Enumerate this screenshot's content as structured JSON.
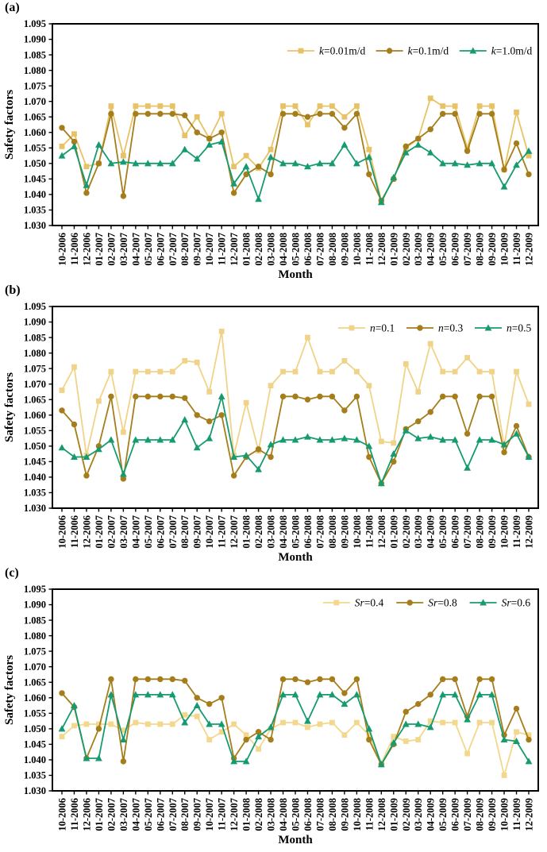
{
  "figure": {
    "background": "#ffffff",
    "axis_color": "#000000",
    "ylabel": "Safety factors",
    "xlabel": "Month",
    "ylim": [
      1.03,
      1.095
    ],
    "ytick_step": 0.005,
    "grid": false,
    "legend_position": "top-right-inside"
  },
  "months": [
    "10-2006",
    "11-2006",
    "12-2006",
    "01-2007",
    "02-2007",
    "03-2007",
    "04-2007",
    "05-2007",
    "06-2007",
    "07-2007",
    "08-2007",
    "09-2007",
    "10-2007",
    "11-2007",
    "12-2007",
    "01-2008",
    "02-2008",
    "03-2008",
    "04-2008",
    "05-2008",
    "06-2008",
    "07-2008",
    "08-2008",
    "09-2008",
    "10-2008",
    "11-2008",
    "12-2008",
    "01-2009",
    "02-2009",
    "03-2009",
    "04-2009",
    "05-2009",
    "06-2009",
    "07-2009",
    "08-2009",
    "09-2009",
    "10-2009",
    "11-2009",
    "12-2009"
  ],
  "chart_data": [
    {
      "type": "line",
      "panel": "(a)",
      "xlabel": "Month",
      "ylabel": "Safety factors",
      "ylim": [
        1.03,
        1.095
      ],
      "ytick_step": 0.005,
      "grid": false,
      "legend_position": "top-right-inside",
      "categories": [
        "10-2006",
        "11-2006",
        "12-2006",
        "01-2007",
        "02-2007",
        "03-2007",
        "04-2007",
        "05-2007",
        "06-2007",
        "07-2007",
        "08-2007",
        "09-2007",
        "10-2007",
        "11-2007",
        "12-2007",
        "01-2008",
        "02-2008",
        "03-2008",
        "04-2008",
        "05-2008",
        "06-2008",
        "07-2008",
        "08-2008",
        "09-2008",
        "10-2008",
        "11-2008",
        "12-2008",
        "01-2009",
        "02-2009",
        "03-2009",
        "04-2009",
        "05-2009",
        "06-2009",
        "07-2009",
        "08-2009",
        "09-2009",
        "10-2009",
        "11-2009",
        "12-2009"
      ],
      "series": [
        {
          "name": "k=0.01m/d",
          "name_var": "k",
          "name_rest": "=0.01m/d",
          "color": "#E8C266",
          "marker": "square",
          "values": [
            1.0555,
            1.0595,
            1.049,
            1.05,
            1.0685,
            1.0525,
            1.0685,
            1.0685,
            1.0685,
            1.0685,
            1.059,
            1.065,
            1.058,
            1.066,
            1.049,
            1.0525,
            1.0485,
            1.0545,
            1.0685,
            1.0685,
            1.0625,
            1.0685,
            1.0685,
            1.065,
            1.0685,
            1.0545,
            1.038,
            1.045,
            1.055,
            1.058,
            1.071,
            1.0685,
            1.0685,
            1.055,
            1.0685,
            1.0685,
            1.048,
            1.0665,
            1.0525
          ]
        },
        {
          "name": "k=0.1m/d",
          "name_var": "k",
          "name_rest": "=0.1m/d",
          "color": "#A57E1B",
          "marker": "circle",
          "values": [
            1.0615,
            1.057,
            1.0405,
            1.05,
            1.066,
            1.0395,
            1.066,
            1.066,
            1.066,
            1.066,
            1.0655,
            1.06,
            1.058,
            1.06,
            1.0405,
            1.0465,
            1.049,
            1.0465,
            1.066,
            1.066,
            1.065,
            1.066,
            1.066,
            1.0615,
            1.066,
            1.0465,
            1.038,
            1.045,
            1.0555,
            1.058,
            1.061,
            1.066,
            1.066,
            1.054,
            1.066,
            1.066,
            1.048,
            1.0565,
            1.0465
          ]
        },
        {
          "name": "k=1.0m/d",
          "name_var": "k",
          "name_rest": "=1.0m/d",
          "color": "#169B70",
          "marker": "triangle",
          "values": [
            1.0525,
            1.0555,
            1.043,
            1.056,
            1.05,
            1.0505,
            1.05,
            1.05,
            1.05,
            1.05,
            1.0545,
            1.0515,
            1.056,
            1.057,
            1.0435,
            1.049,
            1.0385,
            1.052,
            1.05,
            1.05,
            1.049,
            1.05,
            1.05,
            1.056,
            1.05,
            1.052,
            1.0375,
            1.0455,
            1.0535,
            1.056,
            1.0535,
            1.05,
            1.05,
            1.0495,
            1.05,
            1.05,
            1.0425,
            1.0495,
            1.054
          ]
        }
      ]
    },
    {
      "type": "line",
      "panel": "(b)",
      "xlabel": "Month",
      "ylabel": "Safety factors",
      "ylim": [
        1.03,
        1.095
      ],
      "ytick_step": 0.005,
      "grid": false,
      "legend_position": "top-right-inside",
      "categories": [
        "10-2006",
        "11-2006",
        "12-2006",
        "01-2007",
        "02-2007",
        "03-2007",
        "04-2007",
        "05-2007",
        "06-2007",
        "07-2007",
        "08-2007",
        "09-2007",
        "10-2007",
        "11-2007",
        "12-2007",
        "01-2008",
        "02-2008",
        "03-2008",
        "04-2008",
        "05-2008",
        "06-2008",
        "07-2008",
        "08-2008",
        "09-2008",
        "10-2008",
        "11-2008",
        "12-2008",
        "01-2009",
        "02-2009",
        "03-2009",
        "04-2009",
        "05-2009",
        "06-2009",
        "07-2009",
        "08-2009",
        "09-2009",
        "10-2009",
        "11-2009",
        "12-2009"
      ],
      "series": [
        {
          "name": "n=0.1",
          "name_var": "n",
          "name_rest": "=0.1",
          "color": "#F0D388",
          "marker": "square",
          "values": [
            1.068,
            1.0755,
            1.047,
            1.0645,
            1.074,
            1.0545,
            1.074,
            1.074,
            1.074,
            1.074,
            1.0775,
            1.077,
            1.0675,
            1.087,
            1.047,
            1.064,
            1.0485,
            1.0695,
            1.074,
            1.074,
            1.085,
            1.074,
            1.074,
            1.0775,
            1.074,
            1.0695,
            1.0515,
            1.051,
            1.0765,
            1.0675,
            1.083,
            1.074,
            1.074,
            1.0785,
            1.074,
            1.074,
            1.05,
            1.074,
            1.0635
          ]
        },
        {
          "name": "n=0.3",
          "name_var": "n",
          "name_rest": "=0.3",
          "color": "#A57E1B",
          "marker": "circle",
          "values": [
            1.0615,
            1.057,
            1.0405,
            1.05,
            1.066,
            1.0395,
            1.066,
            1.066,
            1.066,
            1.066,
            1.0655,
            1.06,
            1.058,
            1.06,
            1.0405,
            1.0465,
            1.049,
            1.0465,
            1.066,
            1.066,
            1.065,
            1.066,
            1.066,
            1.0615,
            1.066,
            1.0465,
            1.038,
            1.045,
            1.0555,
            1.058,
            1.061,
            1.066,
            1.066,
            1.054,
            1.066,
            1.066,
            1.048,
            1.0565,
            1.0465
          ]
        },
        {
          "name": "n=0.5",
          "name_var": "n",
          "name_rest": "=0.5",
          "color": "#169B70",
          "marker": "triangle",
          "values": [
            1.0495,
            1.0465,
            1.0465,
            1.049,
            1.052,
            1.041,
            1.052,
            1.052,
            1.052,
            1.052,
            1.0585,
            1.0495,
            1.0525,
            1.066,
            1.0465,
            1.047,
            1.0425,
            1.0505,
            1.052,
            1.052,
            1.053,
            1.052,
            1.052,
            1.0525,
            1.052,
            1.05,
            1.038,
            1.0475,
            1.055,
            1.0525,
            1.053,
            1.052,
            1.052,
            1.043,
            1.052,
            1.052,
            1.0505,
            1.054,
            1.0465
          ]
        }
      ]
    },
    {
      "type": "line",
      "panel": "(c)",
      "xlabel": "Month",
      "ylabel": "Safety factors",
      "ylim": [
        1.03,
        1.095
      ],
      "ytick_step": 0.005,
      "grid": false,
      "legend_position": "top-right-inside",
      "categories": [
        "10-2006",
        "11-2006",
        "12-2006",
        "01-2007",
        "02-2007",
        "03-2007",
        "04-2007",
        "05-2007",
        "06-2007",
        "07-2007",
        "08-2007",
        "09-2007",
        "10-2007",
        "11-2007",
        "12-2007",
        "01-2008",
        "02-2008",
        "03-2008",
        "04-2008",
        "05-2008",
        "06-2008",
        "07-2008",
        "08-2008",
        "09-2008",
        "10-2008",
        "11-2008",
        "12-2008",
        "01-2009",
        "02-2009",
        "03-2009",
        "04-2009",
        "05-2009",
        "06-2009",
        "07-2009",
        "08-2009",
        "09-2009",
        "10-2009",
        "11-2009",
        "12-2009"
      ],
      "series": [
        {
          "name": "Sr=0.4",
          "name_var": "Sr",
          "name_rest": "=0.4",
          "color": "#F2D78C",
          "marker": "square",
          "values": [
            1.0475,
            1.051,
            1.0515,
            1.0515,
            1.0515,
            1.0495,
            1.052,
            1.0515,
            1.0515,
            1.0515,
            1.0545,
            1.054,
            1.0465,
            1.049,
            1.0515,
            1.048,
            1.0435,
            1.05,
            1.052,
            1.052,
            1.0505,
            1.0515,
            1.052,
            1.048,
            1.052,
            1.048,
            1.039,
            1.0475,
            1.046,
            1.0465,
            1.0525,
            1.052,
            1.052,
            1.042,
            1.052,
            1.052,
            1.035,
            1.049,
            1.048
          ]
        },
        {
          "name": "Sr=0.8",
          "name_var": "Sr",
          "name_rest": "=0.8",
          "color": "#A57E1B",
          "marker": "circle",
          "values": [
            1.0615,
            1.057,
            1.0405,
            1.05,
            1.066,
            1.0395,
            1.066,
            1.066,
            1.066,
            1.066,
            1.0655,
            1.06,
            1.058,
            1.06,
            1.0405,
            1.0465,
            1.049,
            1.0465,
            1.066,
            1.066,
            1.065,
            1.066,
            1.066,
            1.0615,
            1.066,
            1.0465,
            1.0385,
            1.045,
            1.0555,
            1.058,
            1.061,
            1.066,
            1.066,
            1.054,
            1.066,
            1.066,
            1.048,
            1.0565,
            1.0465
          ]
        },
        {
          "name": "Sr=0.6",
          "name_var": "Sr",
          "name_rest": "=0.6",
          "color": "#169B70",
          "marker": "triangle",
          "values": [
            1.05,
            1.0575,
            1.0405,
            1.0405,
            1.061,
            1.0465,
            1.061,
            1.061,
            1.061,
            1.061,
            1.052,
            1.0575,
            1.0515,
            1.0515,
            1.0395,
            1.0395,
            1.0475,
            1.0505,
            1.061,
            1.061,
            1.0525,
            1.061,
            1.061,
            1.058,
            1.061,
            1.05,
            1.0385,
            1.0455,
            1.0515,
            1.0515,
            1.0505,
            1.061,
            1.061,
            1.053,
            1.061,
            1.061,
            1.0465,
            1.046,
            1.0395
          ]
        }
      ]
    }
  ]
}
